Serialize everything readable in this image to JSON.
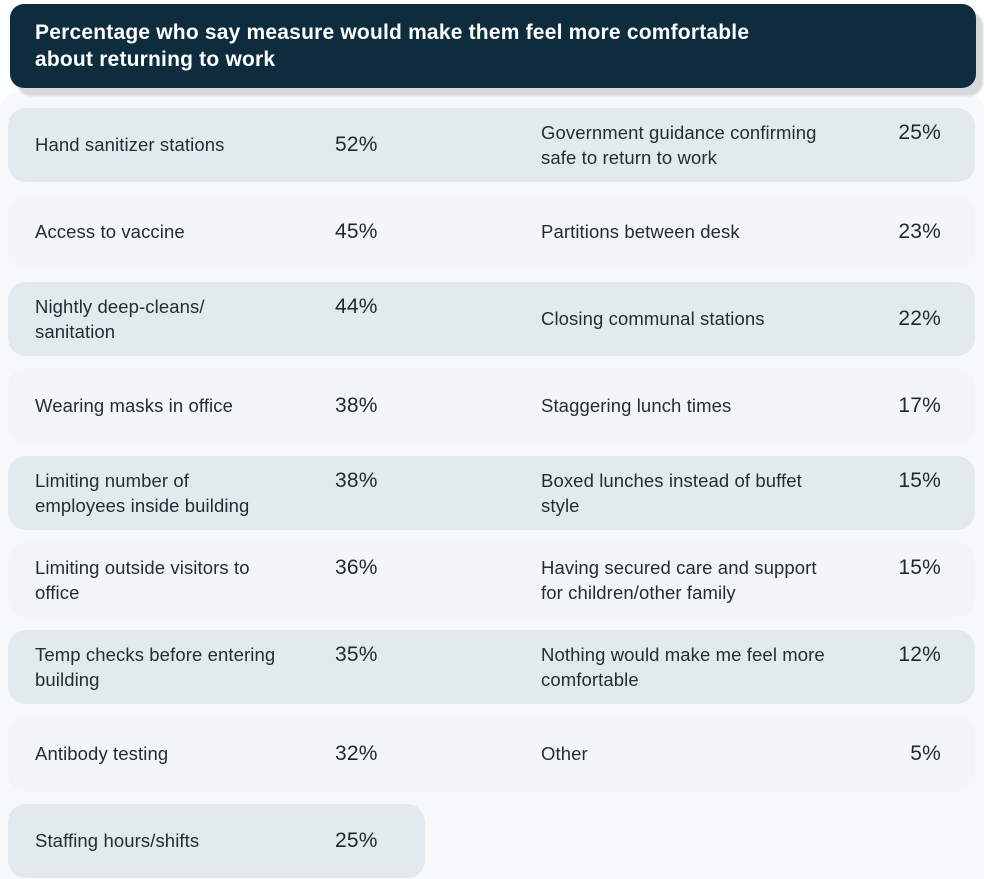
{
  "header": {
    "title": "Percentage who say measure would make them feel more comfortable\nabout returning to work"
  },
  "colors": {
    "header_bg": "#0d2d3e",
    "header_text": "#ffffff",
    "header_shadow": "#d5d9da",
    "board_bg": "#f6f9fa",
    "row_dark": "#e3eaed",
    "row_light": "#f2f6f9",
    "text": "#232d33"
  },
  "display": {
    "rows": [
      {
        "left_label": "Hand sanitizer stations",
        "left_value": "52%",
        "right_label": "Government guidance confirming\nsafe to return to work",
        "right_value": "25%"
      },
      {
        "left_label": "Access to vaccine",
        "left_value": "45%",
        "right_label": "Partitions between desk",
        "right_value": "23%"
      },
      {
        "left_label": "Nightly deep-cleans/\nsanitation",
        "left_value": "44%",
        "right_label": "Closing communal stations",
        "right_value": "22%"
      },
      {
        "left_label": "Wearing masks in office",
        "left_value": "38%",
        "right_label": "Staggering lunch times",
        "right_value": "17%"
      },
      {
        "left_label": "Limiting number of\nemployees inside building",
        "left_value": "38%",
        "right_label": "Boxed lunches instead of buffet\nstyle",
        "right_value": "15%"
      },
      {
        "left_label": "Limiting outside visitors to\noffice",
        "left_value": "36%",
        "right_label": "Having secured care and support\nfor children/other family",
        "right_value": "15%"
      },
      {
        "left_label": "Temp checks before entering\nbuilding",
        "left_value": "35%",
        "right_label": "Nothing would make me feel more\ncomfortable",
        "right_value": "12%"
      },
      {
        "left_label": "Antibody testing",
        "left_value": "32%",
        "right_label": "Other",
        "right_value": "5%"
      },
      {
        "left_label": "Staffing hours/shifts",
        "left_value": "25%"
      }
    ]
  },
  "chart_data": {
    "type": "table",
    "title": "Percentage who say measure would make them feel more comfortable about returning to work",
    "unit": "%",
    "layout": "two-column ranked list, alternating shaded bands",
    "measures": [
      {
        "label": "Hand sanitizer stations",
        "value": 52
      },
      {
        "label": "Access to vaccine",
        "value": 45
      },
      {
        "label": "Nightly deep-cleans/sanitation",
        "value": 44
      },
      {
        "label": "Wearing masks in office",
        "value": 38
      },
      {
        "label": "Limiting number of employees inside building",
        "value": 38
      },
      {
        "label": "Limiting outside visitors to office",
        "value": 36
      },
      {
        "label": "Temp checks before entering building",
        "value": 35
      },
      {
        "label": "Antibody testing",
        "value": 32
      },
      {
        "label": "Staffing hours/shifts",
        "value": 25
      },
      {
        "label": "Government guidance confirming safe to return to work",
        "value": 25
      },
      {
        "label": "Partitions between desk",
        "value": 23
      },
      {
        "label": "Closing communal stations",
        "value": 22
      },
      {
        "label": "Staggering lunch times",
        "value": 17
      },
      {
        "label": "Boxed lunches instead of buffet style",
        "value": 15
      },
      {
        "label": "Having secured care and support for children/other family",
        "value": 15
      },
      {
        "label": "Nothing would make me feel more comfortable",
        "value": 12
      },
      {
        "label": "Other",
        "value": 5
      }
    ]
  }
}
